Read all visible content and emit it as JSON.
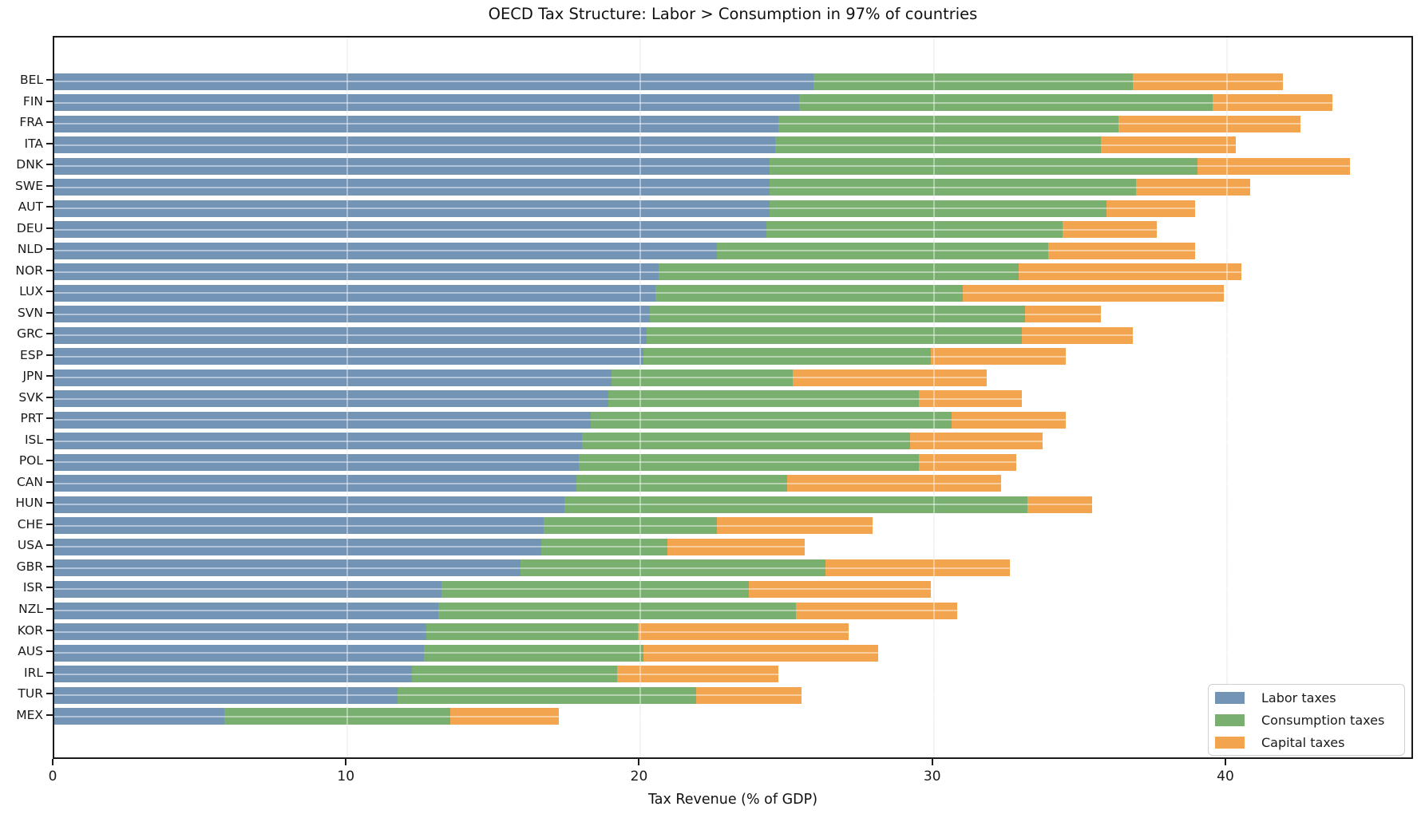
{
  "title": "OECD Tax Structure: Labor > Consumption in 97% of countries",
  "xlabel": "Tax Revenue (% of GDP)",
  "colors": {
    "labor": "#7494b6",
    "consumption": "#79b06f",
    "capital": "#f2a44f",
    "spine": "#1a1a1a",
    "grid": "#ececec"
  },
  "legend": {
    "position": "lower right",
    "items": [
      "Labor taxes",
      "Consumption taxes",
      "Capital taxes"
    ]
  },
  "chart_data": {
    "type": "bar",
    "orientation": "horizontal",
    "stacked": true,
    "title": "OECD Tax Structure: Labor > Consumption in 97% of countries",
    "xlabel": "Tax Revenue (% of GDP)",
    "ylabel": "",
    "xlim": [
      0,
      46.4
    ],
    "x_ticks": [
      0,
      10,
      20,
      30,
      40
    ],
    "grid": true,
    "legend_position": "lower right",
    "categories": [
      "BEL",
      "FIN",
      "FRA",
      "ITA",
      "DNK",
      "SWE",
      "AUT",
      "DEU",
      "NLD",
      "NOR",
      "LUX",
      "SVN",
      "GRC",
      "ESP",
      "JPN",
      "SVK",
      "PRT",
      "ISL",
      "POL",
      "CAN",
      "HUN",
      "CHE",
      "USA",
      "GBR",
      "ISR",
      "NZL",
      "KOR",
      "AUS",
      "IRL",
      "TUR",
      "MEX"
    ],
    "series": [
      {
        "name": "Labor taxes",
        "color": "#7494b6",
        "values": [
          25.9,
          25.4,
          24.7,
          24.6,
          24.4,
          24.4,
          24.4,
          24.3,
          22.6,
          20.6,
          20.5,
          20.3,
          20.2,
          20.1,
          19.0,
          18.9,
          18.3,
          18.0,
          17.9,
          17.8,
          17.4,
          16.7,
          16.6,
          15.9,
          13.2,
          13.1,
          12.7,
          12.6,
          12.2,
          11.7,
          5.8
        ]
      },
      {
        "name": "Consumption taxes",
        "color": "#79b06f",
        "values": [
          10.9,
          14.1,
          11.6,
          11.1,
          14.6,
          12.5,
          11.5,
          10.1,
          11.3,
          12.3,
          10.5,
          12.8,
          12.8,
          9.8,
          6.2,
          10.6,
          12.3,
          11.2,
          11.6,
          7.2,
          15.8,
          5.9,
          4.3,
          10.4,
          10.5,
          12.2,
          7.2,
          7.5,
          7.0,
          10.2,
          7.7
        ]
      },
      {
        "name": "Capital taxes",
        "color": "#f2a44f",
        "values": [
          5.1,
          4.1,
          6.2,
          4.6,
          5.2,
          3.9,
          3.0,
          3.2,
          5.0,
          7.6,
          8.9,
          2.6,
          3.8,
          4.6,
          6.6,
          3.5,
          3.9,
          4.5,
          3.3,
          7.3,
          2.2,
          5.3,
          4.7,
          6.3,
          6.2,
          5.5,
          7.2,
          8.0,
          5.5,
          3.6,
          3.7
        ]
      }
    ],
    "totals": [
      41.9,
      43.6,
      42.5,
      40.3,
      44.2,
      40.8,
      38.9,
      37.6,
      38.9,
      40.5,
      39.9,
      35.7,
      36.8,
      34.5,
      31.8,
      33.0,
      34.5,
      33.7,
      32.8,
      32.3,
      35.4,
      27.9,
      25.6,
      32.6,
      29.9,
      30.8,
      27.1,
      28.1,
      24.7,
      25.5,
      17.2
    ]
  }
}
